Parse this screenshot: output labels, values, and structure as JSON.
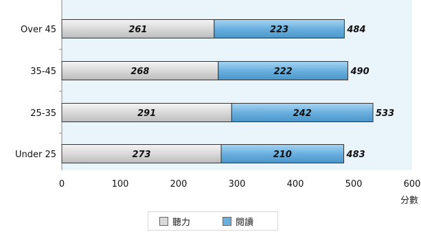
{
  "chart_data": {
    "type": "bar",
    "orientation": "horizontal",
    "stacked": true,
    "categories": [
      "Over 45",
      "35-45",
      "25-35",
      "Under 25"
    ],
    "series": [
      {
        "name": "聽力",
        "values": [
          261,
          268,
          291,
          273
        ],
        "color": "#d9d9d9"
      },
      {
        "name": "閱讀",
        "values": [
          223,
          222,
          242,
          210
        ],
        "color": "#6ab0df"
      }
    ],
    "totals": [
      484,
      490,
      533,
      483
    ],
    "xlim": [
      0,
      600
    ],
    "xticks": [
      0,
      100,
      200,
      300,
      400,
      500,
      600
    ],
    "xlabel": "分數",
    "plot_background": "#eaf4fb",
    "legend_position": "bottom",
    "grid": false
  }
}
